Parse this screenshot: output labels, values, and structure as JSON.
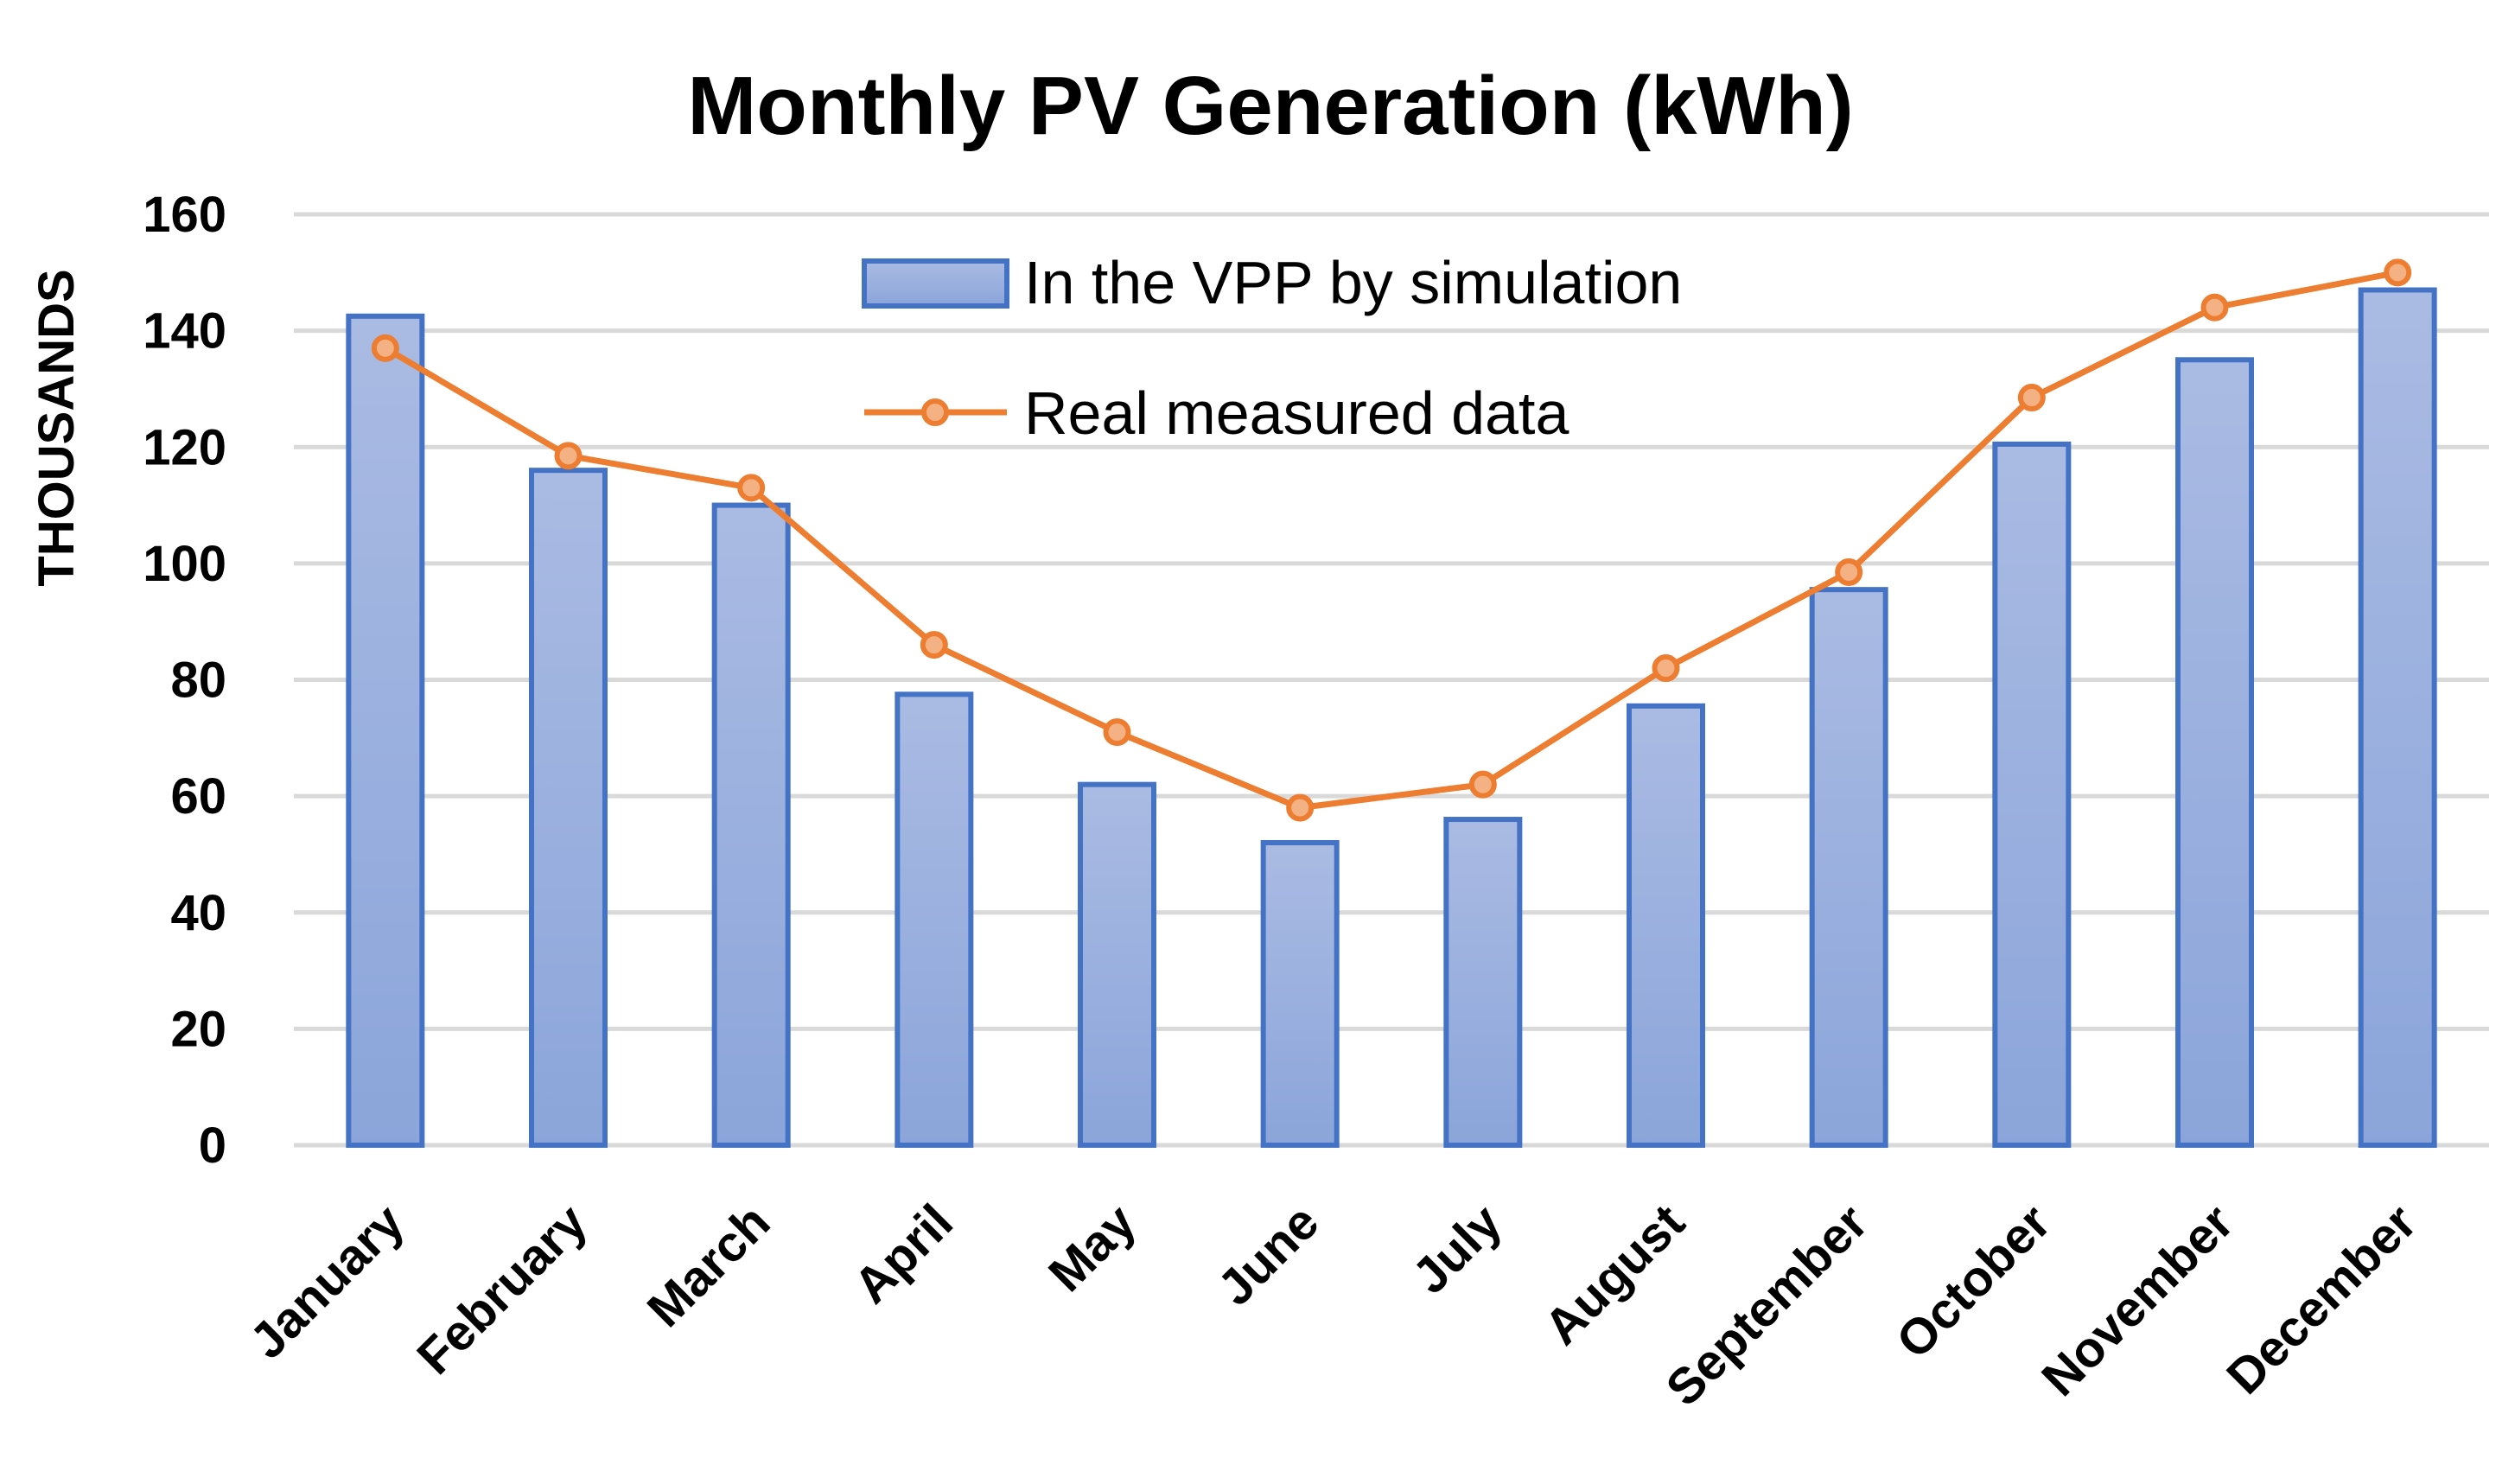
{
  "chart_data": {
    "type": "bar",
    "title": "Monthly PV Generation (kWh)",
    "xlabel": "",
    "ylabel": "THOUSANDS",
    "ylim": [
      0,
      160
    ],
    "yticks": [
      "0",
      "20",
      "40",
      "60",
      "80",
      "100",
      "120",
      "140",
      "160"
    ],
    "grid": true,
    "legend_position": "top-center",
    "categories": [
      "January",
      "February",
      "March",
      "April",
      "May",
      "June",
      "July",
      "August",
      "September",
      "October",
      "November",
      "December"
    ],
    "series": [
      {
        "name": "In the VPP by simulation",
        "type": "bar",
        "color": "#8faadc",
        "values": [
          142.5,
          116,
          110,
          77.5,
          62,
          52,
          56,
          75.5,
          95.5,
          120.5,
          135,
          147
        ]
      },
      {
        "name": "Real measured data",
        "type": "line",
        "color": "#ed7d31",
        "values": [
          137,
          118.5,
          113,
          86,
          71,
          58,
          62,
          82,
          98.5,
          128.5,
          144,
          150
        ]
      }
    ]
  }
}
